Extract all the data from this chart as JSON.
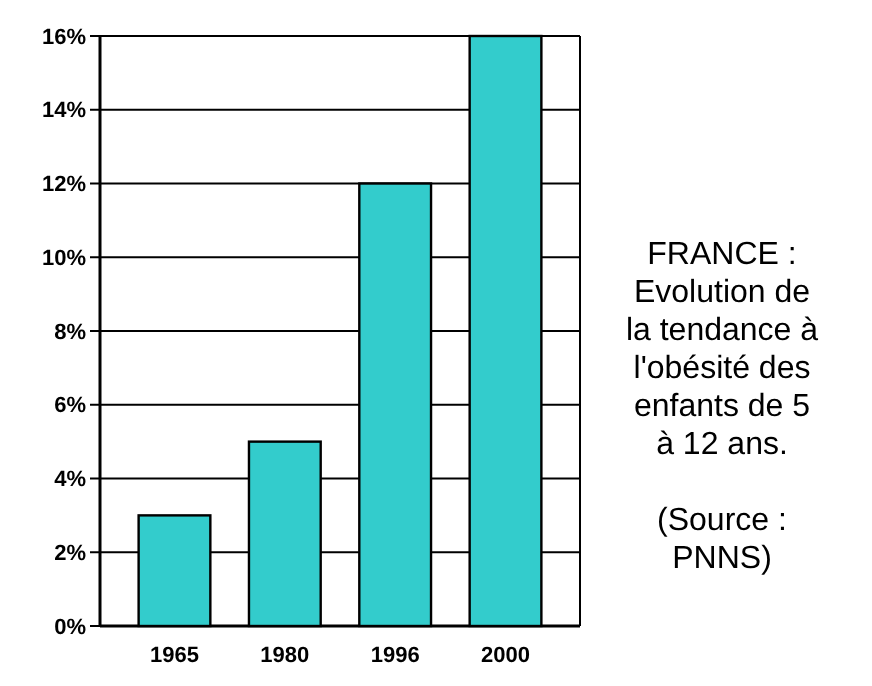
{
  "chart_data": {
    "type": "bar",
    "title": "FRANCE : Evolution de la tendance à l'obésité des enfants de 5 à 12 ans.",
    "annotations": [
      "(Source : PNNS)"
    ],
    "categories": [
      "1965",
      "1980",
      "1996",
      "2000"
    ],
    "values": [
      3,
      5,
      12,
      16
    ],
    "color": "#33cccc",
    "ylim": [
      0,
      16
    ],
    "yticks": [
      {
        "value": 0,
        "label": "0%"
      },
      {
        "value": 2,
        "label": "2%"
      },
      {
        "value": 4,
        "label": "4%"
      },
      {
        "value": 6,
        "label": "6%"
      },
      {
        "value": 8,
        "label": "8%"
      },
      {
        "value": 10,
        "label": "10%"
      },
      {
        "value": 12,
        "label": "12%"
      },
      {
        "value": 14,
        "label": "14%"
      },
      {
        "value": 16,
        "label": "16%"
      }
    ],
    "grid": "y"
  }
}
